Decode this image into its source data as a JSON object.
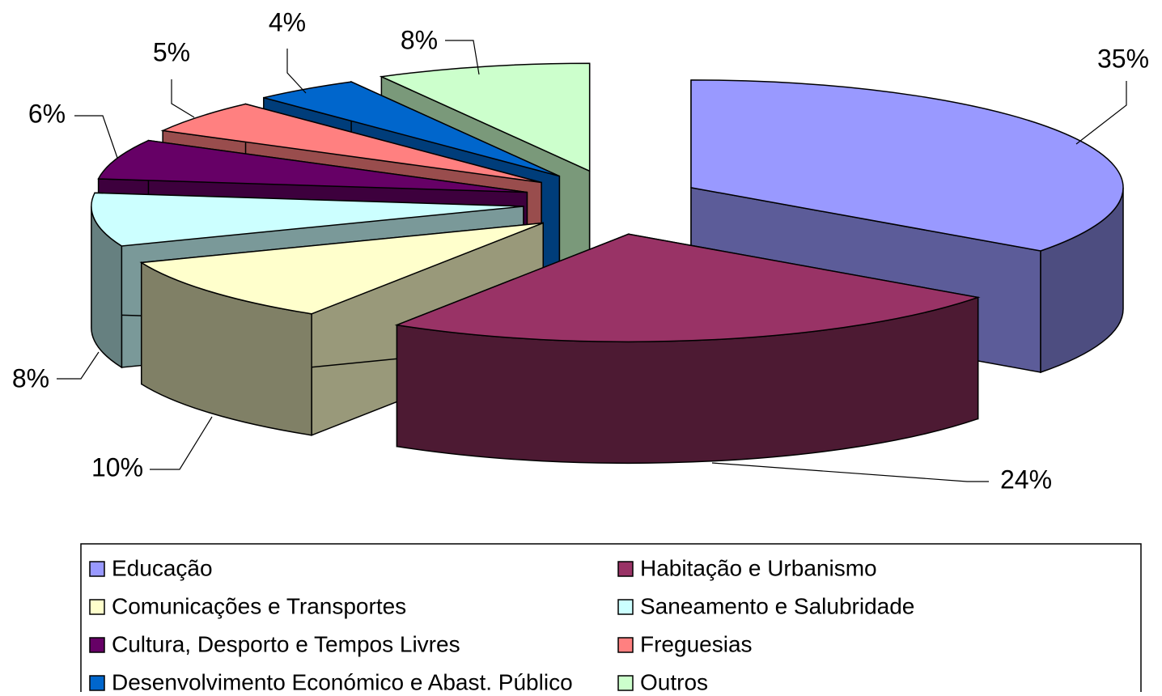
{
  "chart_data": {
    "type": "pie",
    "categories": [
      "Educação",
      "Habitação e Urbanismo",
      "Comunicações e Transportes",
      "Saneamento e Salubridade",
      "Cultura, Desporto e Tempos Livres",
      "Freguesias",
      "Desenvolvimento Económico e Abast. Público",
      "Outros"
    ],
    "values": [
      35,
      24,
      10,
      8,
      6,
      5,
      4,
      8
    ],
    "value_labels": [
      "35%",
      "24%",
      "10%",
      "8%",
      "6%",
      "5%",
      "4%",
      "8%"
    ],
    "colors": [
      "#9999ff",
      "#993366",
      "#ffffcc",
      "#ccffff",
      "#660066",
      "#ff8080",
      "#0066cc",
      "#ccffcc"
    ],
    "legend": "bottom"
  }
}
